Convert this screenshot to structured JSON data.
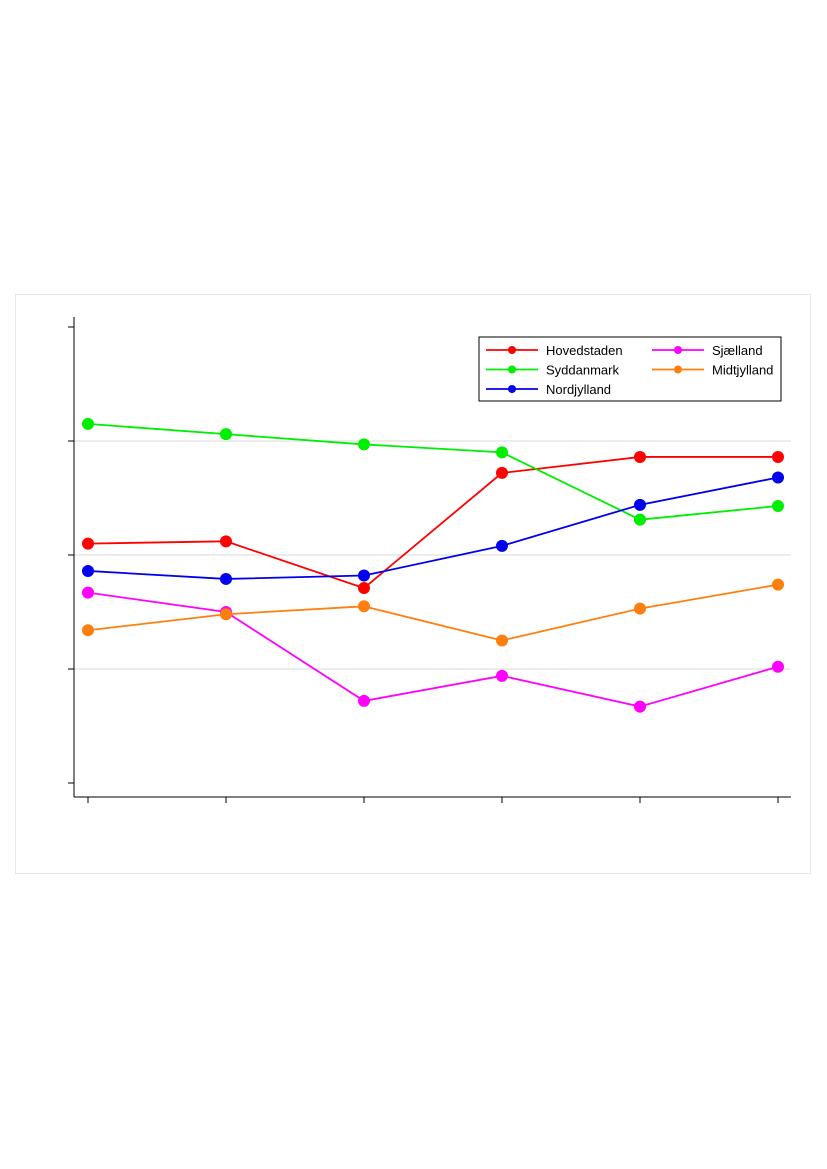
{
  "chart_data": {
    "type": "line",
    "title": "",
    "xlabel": "",
    "ylabel": "",
    "x": [
      1,
      2,
      3,
      4,
      5,
      6
    ],
    "ylim": [
      0,
      4
    ],
    "yticks": [
      0,
      1,
      2,
      3,
      4
    ],
    "grid": true,
    "legend_position": "top-right",
    "series": [
      {
        "name": "Hovedstaden",
        "color": "#ff0000",
        "values": [
          2.1,
          2.12,
          1.71,
          2.72,
          2.86,
          2.86
        ]
      },
      {
        "name": "Syddanmark",
        "color": "#00ee00",
        "values": [
          3.15,
          3.06,
          2.97,
          2.9,
          2.31,
          2.43
        ]
      },
      {
        "name": "Nordjylland",
        "color": "#0000ee",
        "values": [
          1.86,
          1.79,
          1.82,
          2.08,
          2.44,
          2.68
        ]
      },
      {
        "name": "Sjælland",
        "color": "#ff00ff",
        "values": [
          1.67,
          1.5,
          0.72,
          0.94,
          0.67,
          1.02
        ]
      },
      {
        "name": "Midtjylland",
        "color": "#ff7f0e",
        "values": [
          1.34,
          1.48,
          1.55,
          1.25,
          1.53,
          1.74
        ]
      }
    ]
  }
}
